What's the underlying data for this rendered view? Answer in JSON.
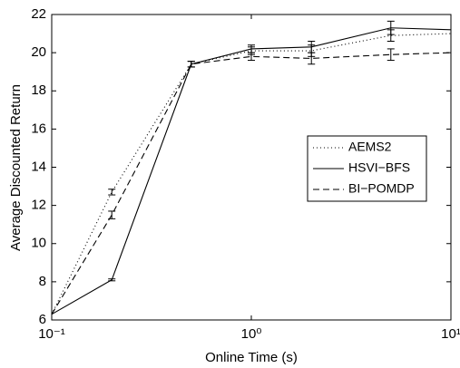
{
  "chart_data": {
    "type": "line",
    "x_label": "Online Time (s)",
    "y_label": "Average Discounted Return",
    "x": [
      0.1,
      0.2,
      0.5,
      1,
      2,
      5,
      10
    ],
    "x_scale": "log",
    "xlim": [
      0.1,
      10
    ],
    "xticks": [
      {
        "value": 0.1,
        "label": "10⁻¹"
      },
      {
        "value": 1,
        "label": "10⁰"
      },
      {
        "value": 10,
        "label": "10¹"
      }
    ],
    "ylim": [
      6,
      22
    ],
    "yticks": [
      6,
      8,
      10,
      12,
      14,
      16,
      18,
      20,
      22
    ],
    "legend": "right",
    "series": [
      {
        "name": "AEMS2",
        "color": "#000000",
        "style": "dotted",
        "values": [
          6.3,
          12.7,
          19.4,
          20.1,
          20.1,
          20.9,
          21.0
        ],
        "errors": [
          null,
          0.15,
          0.15,
          0.2,
          0.3,
          0.3,
          null
        ]
      },
      {
        "name": "HSVI−BFS",
        "color": "#000000",
        "style": "solid",
        "values": [
          6.3,
          8.1,
          19.4,
          20.2,
          20.3,
          21.3,
          21.2
        ],
        "errors": [
          null,
          0.05,
          0.15,
          0.2,
          0.3,
          0.35,
          null
        ]
      },
      {
        "name": "BI−POMDP",
        "color": "#000000",
        "style": "dashed",
        "values": [
          6.3,
          11.5,
          19.4,
          19.8,
          19.7,
          19.9,
          20.0
        ],
        "errors": [
          null,
          0.2,
          0.15,
          0.2,
          0.3,
          0.3,
          null
        ]
      }
    ]
  }
}
